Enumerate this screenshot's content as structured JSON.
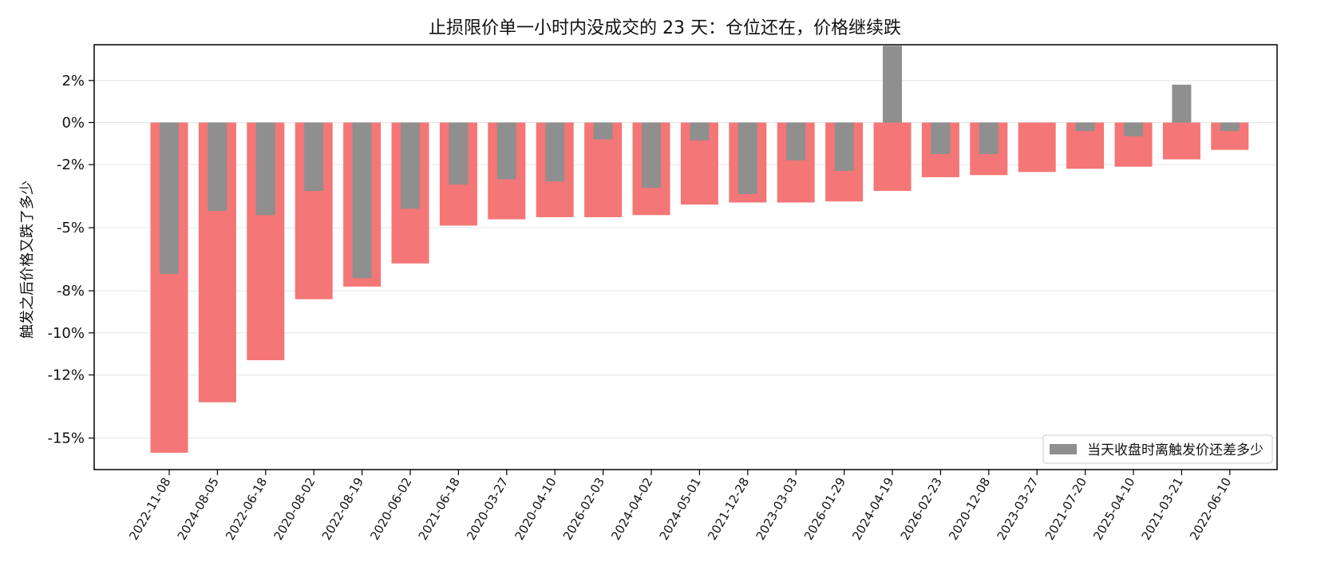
{
  "chart_data": {
    "type": "bar",
    "title": "止损限价单一小时内没成交的 23 天：仓位还在，价格继续跌",
    "xlabel": "",
    "ylabel": "触发之后价格又跌了多少",
    "ylim": [
      -16.5,
      3.7
    ],
    "yticks": [
      2,
      0,
      -2,
      -5,
      -8,
      -10,
      -12,
      -15
    ],
    "ytick_labels": [
      "2%",
      "0%",
      "-2%",
      "-5%",
      "-8%",
      "-10%",
      "-12%",
      "-15%"
    ],
    "grid": "horizontal",
    "legend_position": "lower-right",
    "categories": [
      "2022-11-08",
      "2024-08-05",
      "2022-06-18",
      "2020-08-02",
      "2022-08-19",
      "2020-06-02",
      "2021-06-18",
      "2020-03-27",
      "2020-04-10",
      "2026-02-03",
      "2024-04-02",
      "2024-05-01",
      "2021-12-28",
      "2023-03-03",
      "2026-01-29",
      "2024-04-19",
      "2026-02-23",
      "2020-12-08",
      "2023-03-27",
      "2021-07-20",
      "2025-04-10",
      "2021-03-21",
      "2022-06-10"
    ],
    "series": [
      {
        "values": [
          -15.7,
          -13.3,
          -11.3,
          -8.4,
          -7.8,
          -6.7,
          -4.9,
          -4.6,
          -4.5,
          -4.5,
          -4.4,
          -3.9,
          -3.8,
          -3.8,
          -3.75,
          -3.25,
          -2.6,
          -2.5,
          -2.35,
          -2.2,
          -2.1,
          -1.75,
          -1.3
        ],
        "color": "#f47676"
      },
      {
        "name": "当天收盘时离触发价还差多少",
        "values": [
          -7.2,
          -4.2,
          -4.4,
          -3.25,
          -7.4,
          -4.1,
          -2.95,
          -2.7,
          -2.8,
          -0.8,
          -3.1,
          -0.85,
          -3.4,
          -1.8,
          -2.3,
          3.65,
          -1.5,
          -1.5,
          0,
          -0.4,
          -0.65,
          1.8,
          -0.4
        ],
        "color": "#8f8f8f"
      }
    ]
  }
}
